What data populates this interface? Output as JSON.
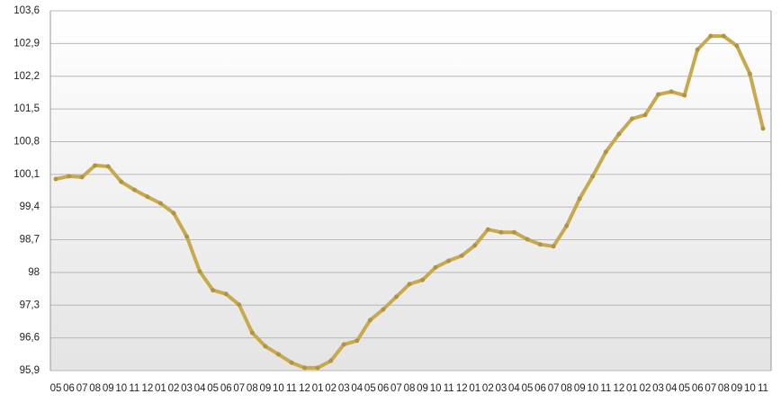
{
  "chart_data": {
    "type": "line",
    "categories": [
      "05",
      "06",
      "07",
      "08",
      "09",
      "10",
      "11",
      "12",
      "01",
      "02",
      "03",
      "04",
      "05",
      "06",
      "07",
      "08",
      "09",
      "10",
      "11",
      "12",
      "01",
      "02",
      "03",
      "04",
      "05",
      "06",
      "07",
      "08",
      "09",
      "10",
      "11",
      "12",
      "01",
      "02",
      "03",
      "04",
      "05",
      "06",
      "07",
      "08",
      "09",
      "10",
      "11",
      "12",
      "01",
      "02",
      "03",
      "04",
      "05",
      "06",
      "07",
      "08",
      "09",
      "10",
      "11"
    ],
    "series": [
      {
        "color": "#c7a94e",
        "values": [
          100.0,
          100.06,
          100.04,
          100.29,
          100.27,
          99.94,
          99.77,
          99.62,
          99.48,
          99.27,
          98.77,
          98.02,
          97.62,
          97.54,
          97.31,
          96.71,
          96.42,
          96.25,
          96.07,
          95.96,
          95.96,
          96.11,
          96.46,
          96.54,
          96.98,
          97.21,
          97.48,
          97.75,
          97.84,
          98.11,
          98.25,
          98.36,
          98.58,
          98.92,
          98.86,
          98.86,
          98.71,
          98.6,
          98.56,
          99.0,
          99.58,
          100.06,
          100.58,
          100.96,
          101.29,
          101.37,
          101.81,
          101.87,
          101.79,
          102.77,
          103.06,
          103.06,
          102.85,
          102.25,
          101.08
        ]
      }
    ],
    "ylim": [
      95.9,
      103.6
    ],
    "yticks": [
      {
        "value": 95.9,
        "label": "95,9"
      },
      {
        "value": 96.6,
        "label": "96,6"
      },
      {
        "value": 97.3,
        "label": "97,3"
      },
      98,
      {
        "value": 98.7,
        "label": "98,7"
      },
      {
        "value": 99.4,
        "label": "99,4"
      },
      {
        "value": 100.1,
        "label": "100,1"
      },
      {
        "value": 100.8,
        "label": "100,8"
      },
      {
        "value": 101.5,
        "label": "101,5"
      },
      {
        "value": 102.2,
        "label": "102,2"
      },
      {
        "value": 102.9,
        "label": "102,9"
      },
      {
        "value": 103.6,
        "label": "103,6"
      }
    ],
    "grid": true
  }
}
